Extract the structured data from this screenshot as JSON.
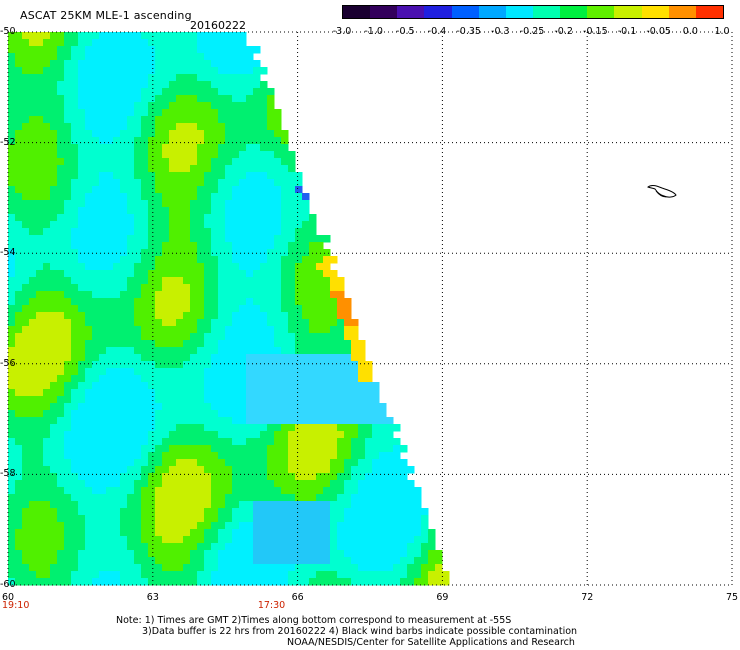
{
  "header": {
    "title": "ASCAT 25KM MLE-1 ascending",
    "date": "20160222"
  },
  "colorbar": {
    "labels": [
      "-3.0",
      "-1.0",
      "-0.5",
      "-0.4",
      "-0.35",
      "-0.3",
      "-0.25",
      "-0.2",
      "-0.15",
      "-0.1",
      "-0.05",
      "0.0",
      "1.0"
    ],
    "colors": [
      "#1a0030",
      "#33005c",
      "#4a10b0",
      "#2020e0",
      "#0060ff",
      "#00a8ff",
      "#00e8ff",
      "#00ffb0",
      "#00f040",
      "#60f000",
      "#c8f000",
      "#ffe000",
      "#ff9000",
      "#ff3000"
    ]
  },
  "map": {
    "lon_range": [
      60,
      75
    ],
    "lat_range": [
      -60,
      -50
    ],
    "lon_ticks": [
      "60",
      "63",
      "66",
      "69",
      "72",
      "75"
    ],
    "lat_ticks": [
      "-50",
      "-52",
      "-54",
      "-56",
      "-58",
      "-60"
    ],
    "time_labels": [
      {
        "text": "19:10",
        "lon": 60
      },
      {
        "text": "17:30",
        "lon": 65.3
      }
    ],
    "land_feature": "heard-island-outline-icon"
  },
  "notes": [
    "Note: 1) Times are GMT 2)Times along bottom correspond to measurement at -55S",
    "3)Data buffer is 22 hrs from 20160222 4) Black wind barbs indicate possible contamination",
    "NOAA/NESDIS/Center for Satellite Applications and Research"
  ]
}
